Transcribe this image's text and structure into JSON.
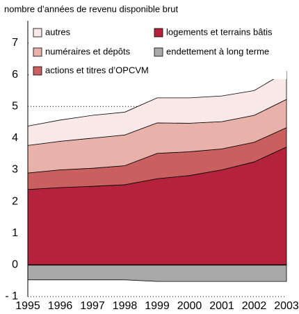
{
  "chart_data": {
    "type": "stacked_area",
    "subtitle": "nombre d’années de revenu disponible brut",
    "x": [
      1995,
      1996,
      1997,
      1998,
      1999,
      2000,
      2001,
      2002,
      2003
    ],
    "xlim": [
      1995,
      2003
    ],
    "xticks": [
      1995,
      1996,
      1997,
      1998,
      1999,
      2000,
      2001,
      2002,
      2003
    ],
    "ylim": [
      -1,
      7.7
    ],
    "yticks": [
      {
        "value": -1,
        "label": "- 1"
      },
      0,
      1,
      2,
      3,
      4,
      5,
      6,
      7
    ],
    "grid": true,
    "series": [
      {
        "name": "logements et terrains bâtis",
        "color": "#b5223c",
        "values": [
          2.38,
          2.44,
          2.48,
          2.53,
          2.72,
          2.82,
          3.0,
          3.25,
          3.72
        ]
      },
      {
        "name": "actions et titres d’OPCVM",
        "color": "#c9605f",
        "values": [
          0.52,
          0.56,
          0.57,
          0.6,
          0.8,
          0.75,
          0.66,
          0.62,
          0.61
        ]
      },
      {
        "name": "numéraires et dépôts",
        "color": "#e8b1aa",
        "values": [
          0.87,
          0.9,
          0.95,
          0.97,
          0.96,
          0.9,
          0.86,
          0.85,
          0.89
        ]
      },
      {
        "name": "autres",
        "color": "#f9e8e8",
        "values": [
          0.61,
          0.67,
          0.72,
          0.72,
          0.79,
          0.8,
          0.81,
          0.78,
          0.88
        ]
      },
      {
        "name": "endettement à long terme",
        "color": "#a9a9a9",
        "values": [
          -0.47,
          -0.47,
          -0.47,
          -0.47,
          -0.52,
          -0.52,
          -0.52,
          -0.52,
          -0.52
        ]
      }
    ]
  }
}
